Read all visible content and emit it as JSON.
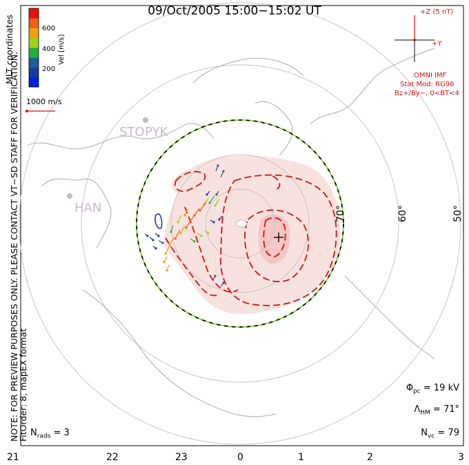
{
  "header": {
    "title": "09/Oct/2005 15:00−15:02 UT",
    "coord_note": "MLT coordinates",
    "preview_note": "NOTE: FOR PREVIEW PURPOSES ONLY. PLEASE CONTACT VT−SD STAFF FOR VERIFICATION.",
    "fit_note": "FitOrder: 8,  mapEX format"
  },
  "colorbar": {
    "label": "Vel [m/s]",
    "ticks": [
      "600",
      "400",
      "200"
    ],
    "colors": [
      "#e81010",
      "#f06010",
      "#f0a010",
      "#a0d020",
      "#20b040",
      "#206090",
      "#1a3aa0",
      "#0020e0"
    ],
    "ref_vector_label": "1000 m/s"
  },
  "imf": {
    "z_label": "+Z (5 nT)",
    "y_label": "+Y",
    "source": "OMNI IMF",
    "model": "Stat Mod: RG96",
    "condition": "Bz+/By−, 0<BT<4"
  },
  "stations": [
    "STO",
    "PYK",
    "HAN"
  ],
  "latitude_labels": [
    "70°",
    "60°",
    "50°"
  ],
  "mlt_labels": [
    "21",
    "22",
    "23",
    "0",
    "1",
    "2",
    "3"
  ],
  "stats": {
    "phi_pc": "19 kV",
    "lambda_hm": "71°",
    "n_vc": "79",
    "n_rads": "3"
  },
  "colors": {
    "grid": "#c0c0c0",
    "coast": "#b8b8b8",
    "contour": "#d81010",
    "fill_light": "#f8e2e0",
    "fill_mid": "#f4c6c4",
    "hmb_dash_1": "#000000",
    "hmb_dash_2": "#7ed321",
    "imf": "#d81010",
    "station": "#c8b8c8"
  }
}
